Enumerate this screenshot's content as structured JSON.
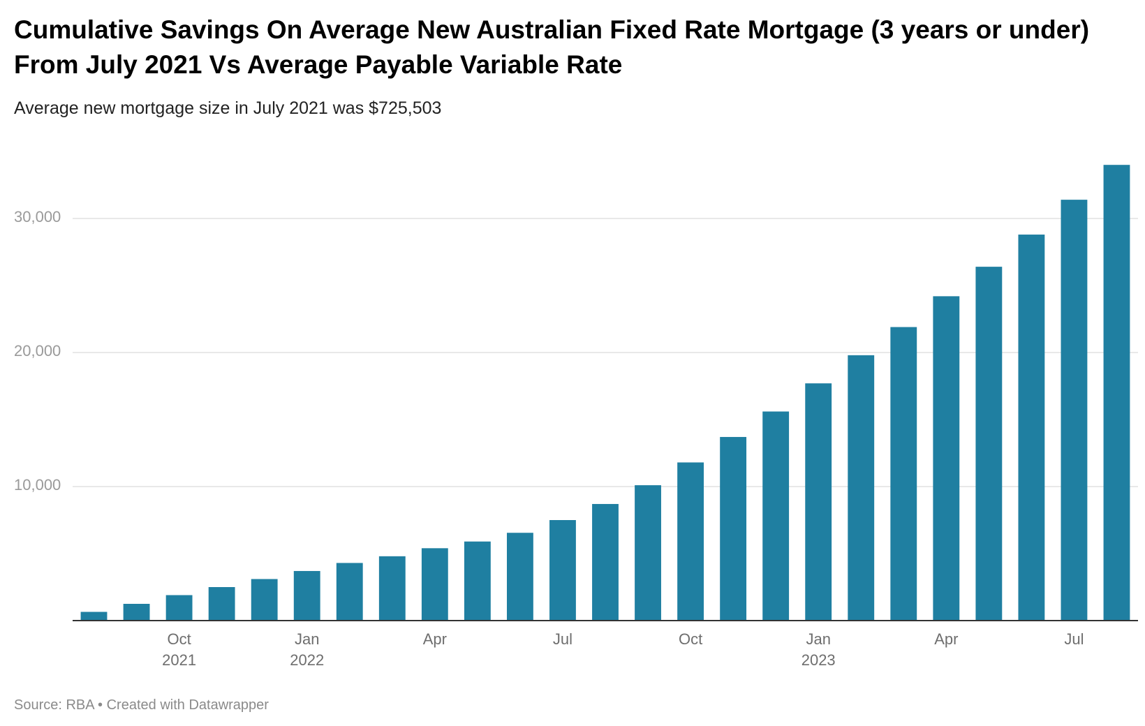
{
  "chart_data": {
    "type": "bar",
    "title": "Cumulative Savings On Average New Australian Fixed Rate Mortgage (3 years or under) From July 2021 Vs Average Payable Variable Rate",
    "subtitle": "Average new mortgage size in July 2021 was $725,503",
    "footer": "Source: RBA • Created with Datawrapper",
    "xlabel": "",
    "ylabel": "",
    "ylim": [
      0,
      35000
    ],
    "yticks": [
      10000,
      20000,
      30000
    ],
    "ytick_labels": [
      "10,000",
      "20,000",
      "30,000"
    ],
    "grid": true,
    "bar_color": "#1f7fa1",
    "categories": [
      "Aug 2021",
      "Sep 2021",
      "Oct 2021",
      "Nov 2021",
      "Dec 2021",
      "Jan 2022",
      "Feb 2022",
      "Mar 2022",
      "Apr 2022",
      "May 2022",
      "Jun 2022",
      "Jul 2022",
      "Aug 2022",
      "Sep 2022",
      "Oct 2022",
      "Nov 2022",
      "Dec 2022",
      "Jan 2023",
      "Feb 2023",
      "Mar 2023",
      "Apr 2023",
      "May 2023",
      "Jun 2023",
      "Jul 2023",
      "Aug 2023"
    ],
    "values": [
      650,
      1250,
      1900,
      2500,
      3100,
      3700,
      4300,
      4800,
      5400,
      5900,
      6550,
      7500,
      8700,
      10100,
      11800,
      13700,
      15600,
      17700,
      19800,
      21900,
      24200,
      26400,
      28800,
      31400,
      34000
    ],
    "xtick_labels": [
      {
        "index": 2,
        "month": "Oct",
        "year": "2021"
      },
      {
        "index": 5,
        "month": "Jan",
        "year": "2022"
      },
      {
        "index": 8,
        "month": "Apr",
        "year": ""
      },
      {
        "index": 11,
        "month": "Jul",
        "year": ""
      },
      {
        "index": 14,
        "month": "Oct",
        "year": ""
      },
      {
        "index": 17,
        "month": "Jan",
        "year": "2023"
      },
      {
        "index": 20,
        "month": "Apr",
        "year": ""
      },
      {
        "index": 23,
        "month": "Jul",
        "year": ""
      }
    ]
  }
}
